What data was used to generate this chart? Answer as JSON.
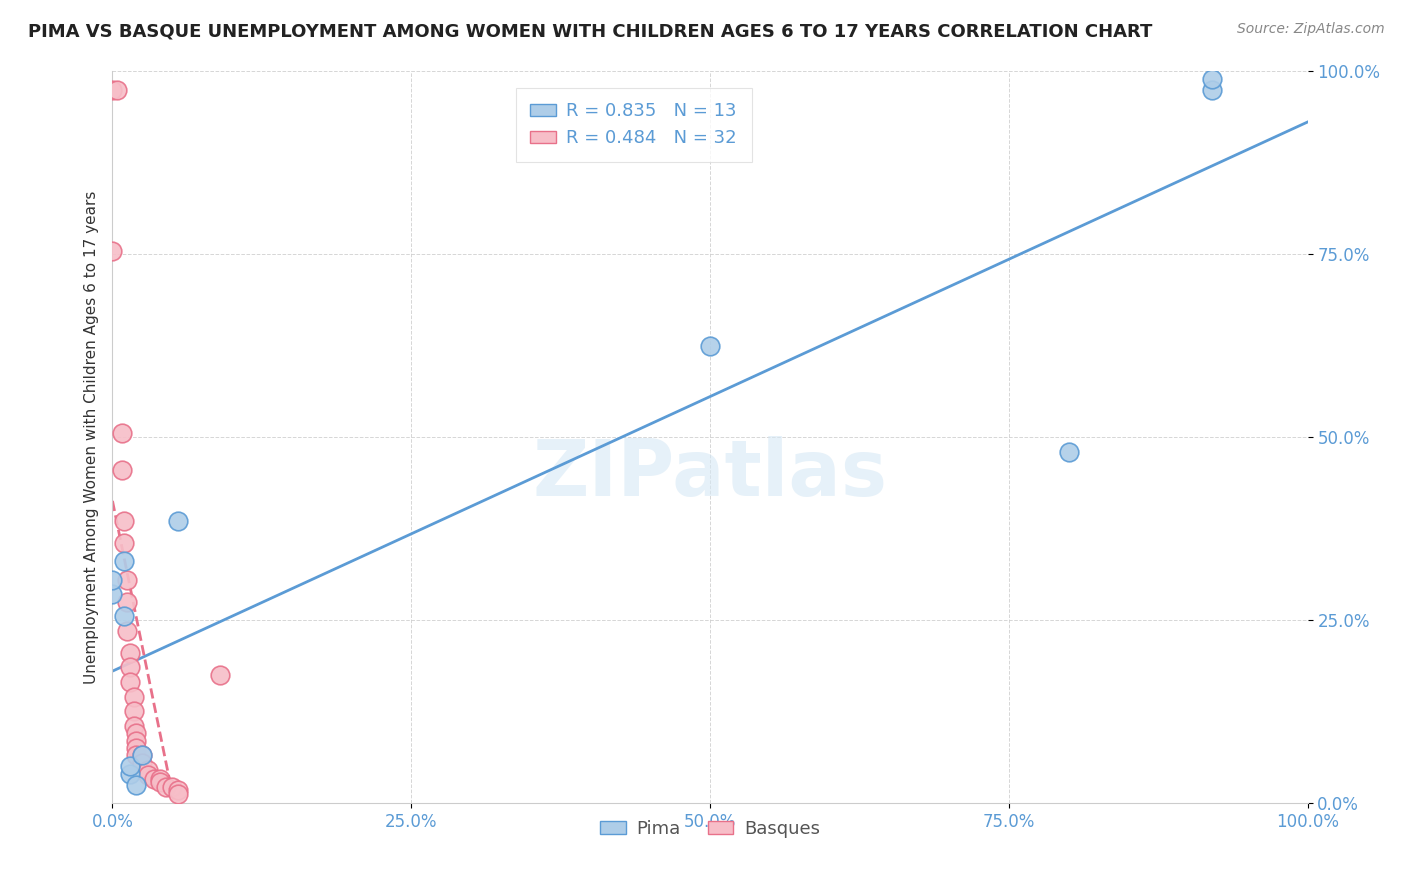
{
  "title": "PIMA VS BASQUE UNEMPLOYMENT AMONG WOMEN WITH CHILDREN AGES 6 TO 17 YEARS CORRELATION CHART",
  "source": "Source: ZipAtlas.com",
  "ylabel": "Unemployment Among Women with Children Ages 6 to 17 years",
  "xlim": [
    0.0,
    1.0
  ],
  "ylim": [
    0.0,
    1.0
  ],
  "xticks": [
    0.0,
    0.25,
    0.5,
    0.75,
    1.0
  ],
  "yticks": [
    0.0,
    0.25,
    0.5,
    0.75,
    1.0
  ],
  "xticklabels": [
    "0.0%",
    "25.0%",
    "50.0%",
    "75.0%",
    "100.0%"
  ],
  "yticklabels": [
    "0.0%",
    "25.0%",
    "50.0%",
    "75.0%",
    "100.0%"
  ],
  "legend_pima_label": "Pima",
  "legend_basque_label": "Basques",
  "pima_R": "0.835",
  "pima_N": "13",
  "basque_R": "0.484",
  "basque_N": "32",
  "pima_fill_color": "#aecde8",
  "basque_fill_color": "#f7bec8",
  "pima_edge_color": "#5b9bd5",
  "basque_edge_color": "#e8718a",
  "pima_line_color": "#5b9bd5",
  "basque_line_color": "#e8718a",
  "watermark_text": "ZIPatlas",
  "watermark_color": "#d6e8f5",
  "pima_points": [
    [
      0.0,
      0.285
    ],
    [
      0.0,
      0.305
    ],
    [
      0.01,
      0.33
    ],
    [
      0.01,
      0.255
    ],
    [
      0.015,
      0.04
    ],
    [
      0.015,
      0.05
    ],
    [
      0.02,
      0.025
    ],
    [
      0.025,
      0.065
    ],
    [
      0.055,
      0.385
    ],
    [
      0.5,
      0.625
    ],
    [
      0.8,
      0.48
    ],
    [
      0.92,
      0.975
    ],
    [
      0.92,
      0.99
    ]
  ],
  "basque_points": [
    [
      0.0,
      0.975
    ],
    [
      0.004,
      0.975
    ],
    [
      0.0,
      0.755
    ],
    [
      0.008,
      0.505
    ],
    [
      0.008,
      0.455
    ],
    [
      0.01,
      0.385
    ],
    [
      0.01,
      0.355
    ],
    [
      0.012,
      0.305
    ],
    [
      0.012,
      0.275
    ],
    [
      0.012,
      0.235
    ],
    [
      0.015,
      0.205
    ],
    [
      0.015,
      0.185
    ],
    [
      0.015,
      0.165
    ],
    [
      0.018,
      0.145
    ],
    [
      0.018,
      0.125
    ],
    [
      0.018,
      0.105
    ],
    [
      0.02,
      0.095
    ],
    [
      0.02,
      0.085
    ],
    [
      0.02,
      0.075
    ],
    [
      0.02,
      0.065
    ],
    [
      0.025,
      0.065
    ],
    [
      0.025,
      0.055
    ],
    [
      0.03,
      0.045
    ],
    [
      0.03,
      0.038
    ],
    [
      0.035,
      0.032
    ],
    [
      0.04,
      0.032
    ],
    [
      0.04,
      0.028
    ],
    [
      0.045,
      0.022
    ],
    [
      0.05,
      0.022
    ],
    [
      0.055,
      0.018
    ],
    [
      0.055,
      0.012
    ],
    [
      0.09,
      0.175
    ]
  ],
  "background_color": "#ffffff",
  "grid_color": "#cccccc",
  "tick_color": "#5b9bd5",
  "title_fontsize": 13,
  "axis_label_fontsize": 11,
  "tick_fontsize": 12
}
